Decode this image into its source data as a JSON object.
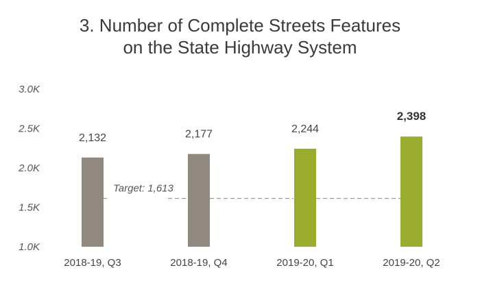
{
  "chart_data": {
    "type": "bar",
    "title_lines": [
      "3. Number of Complete Streets Features",
      "on the State Highway System"
    ],
    "categories": [
      "2018-19, Q3",
      "2018-19, Q4",
      "2019-20, Q1",
      "2019-20, Q2"
    ],
    "values": [
      2132,
      2177,
      2244,
      2398
    ],
    "value_labels": [
      "2,132",
      "2,177",
      "2,244",
      "2,398"
    ],
    "bar_colors": [
      "#918880",
      "#918880",
      "#9aac2e",
      "#9aac2e"
    ],
    "emphasized_index": 3,
    "ylim": [
      1000,
      3000
    ],
    "yticks": [
      1000,
      1500,
      2000,
      2500,
      3000
    ],
    "ytick_labels": [
      "1.0K",
      "1.5K",
      "2.0K",
      "2.5K",
      "3.0K"
    ],
    "target": {
      "value": 1613,
      "label": "Target: 1,613"
    },
    "grid": false,
    "xlabel": "",
    "ylabel": ""
  }
}
